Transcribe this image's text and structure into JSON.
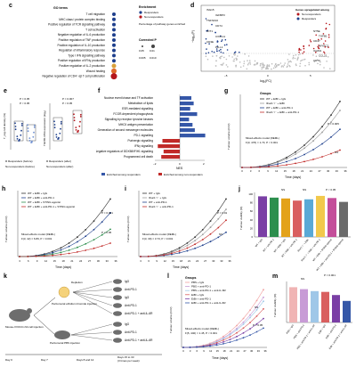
{
  "panels": {
    "c": {
      "letter": "c",
      "header_terms": "GO terms",
      "terms": [
        "T cell migration",
        "MHC class I protein complex binding",
        "Positive regulation of TCR signalling pathway",
        "T cell activation",
        "Negative regulation of IL-6 production",
        "Positive regulation of TNF production",
        "Positive regulation of IL-10 production",
        "Regulation of inflammatory response",
        "Type I IFN signalling pathway",
        "Positive regulation of IFNγ production",
        "Positive regulation of IL-2 production",
        "Wound healing",
        "Negative regulation of CD4⁺ αβ T cell proliferation"
      ],
      "dot_colors": [
        "#1e3f8c",
        "#1e3f8c",
        "#1e3f8c",
        "#1e3f8c",
        "#1e3f8c",
        "#1e3f8c",
        "#1e3f8c",
        "#1e3f8c",
        "#1e3f8c",
        "#1e3f8c",
        "#d9a13a",
        "#e06a2b",
        "#b5161c"
      ],
      "dot_sizes": [
        2,
        2,
        2,
        2,
        2,
        2,
        2,
        2,
        2,
        2,
        2.5,
        3,
        3.5
      ],
      "legend_enrichment": "Enrichment",
      "legend_pct": "Percentage of pathway genes enriched",
      "legend_groups": [
        "Responders",
        "Non-responders"
      ],
      "legend_p": "Corrected P",
      "legend_p_values": [
        "0.05",
        "0.01"
      ],
      "legend_size_values": [
        "0.005",
        "0.010"
      ],
      "legend_group_colors": [
        "#1e3f8c",
        "#b5161c"
      ]
    },
    "d": {
      "letter": "d",
      "ylabel": "−log₁₀(P)",
      "xlabel": "log₂(FC)",
      "xticks": [
        "−5",
        "0",
        "5"
      ],
      "legend_title": "Genes upregulated among",
      "legend_items": [
        "Non-responders",
        "Responders"
      ],
      "legend_colors": [
        "#b5161c",
        "#1e3f8c"
      ],
      "left_genes": [
        "ISG15",
        "IGFBP3",
        "TNFSF10",
        "CD74",
        "IFIT1",
        "CXCL11",
        "CD3E",
        "PD-L1"
      ],
      "right_genes": [
        "NT5E",
        "TGFB1",
        "CD47",
        "NFATC2",
        "ICAM1",
        "CCL21",
        "CD73"
      ]
    },
    "e": {
      "letter": "e",
      "ylabel_left": "T_reg cell density (%)",
      "ylabel_right": "TGFB1 RNA expression (log₂)",
      "p_left_top": "P = 0.05",
      "p_left_bottom": "P < 0.05",
      "p_right_top": "P = 0.007",
      "p_right_bottom": "P < 0.05",
      "legend": [
        "R Responders (before)",
        "R Responders (after)",
        "Non-responders (before)",
        "Non-responders (after)"
      ]
    },
    "f": {
      "letter": "f",
      "xlabel": "NES",
      "xticks": [
        "−2",
        "0",
        "2"
      ],
      "terms": [
        "Nuclear event kinase and TF activation",
        "Metabolism of lipids",
        "ESR-mediated signalling",
        "FCGR-dependent phagocytosis",
        "Signalling by receptor tyrosine kinases",
        "MHCII antigen presentation",
        "Generation of second messenger molecules",
        "PD-1 signalling",
        "Purinergic signalling",
        "IFNγ signalling",
        "Negative regulators of DDX58/IFIH1 signalling",
        "Programmed cell death"
      ],
      "nes": [
        1.0,
        1.2,
        0.9,
        1.5,
        0.8,
        1.1,
        1.3,
        2.2,
        -1.5,
        -1.9,
        -1.4,
        -1.6
      ],
      "bar_colors": [
        "#3557a8",
        "#3557a8",
        "#3557a8",
        "#3557a8",
        "#3557a8",
        "#3557a8",
        "#3557a8",
        "#3557a8",
        "#c12a28",
        "#c12a28",
        "#c12a28",
        "#c12a28"
      ],
      "legend": [
        "Enriched among responders",
        "Enriched among non-responders"
      ]
    },
    "g": {
      "letter": "g",
      "ylabel": "Tumour volume (mm³)",
      "xlabel": "Time (days)",
      "groups_title": "Groups",
      "legend": [
        "WT + EtBr + IgG",
        "Ifnar1⁻/⁻ + EtBr",
        "WT + EtBr + anti-PD-1",
        "Ifnar1⁻/⁻ + EtBr + anti-PD-1"
      ],
      "stats": "Mixed-effects model (REML)\nF(3, 476) = 1.73, P < 0.001",
      "p_labels": [
        "P = 0.005",
        "NS"
      ],
      "xticks": [
        "0",
        "3",
        "6",
        "9",
        "12",
        "15",
        "18",
        "21",
        "24",
        "27",
        "30",
        "33",
        "36"
      ]
    },
    "h": {
      "letter": "h",
      "ylabel": "Tumour volume (mm³)",
      "xlabel": "Time (days)",
      "legend": [
        "WT + EtBr + IgG",
        "WT + EtBr + anti-PD-1",
        "WT + EtBr + STING agonist",
        "WT + EtBr + anti-PD-1 + STING agonist"
      ],
      "stats": "Mixed-effects model (REML)\nF(3, 42) = 6.89, P < 0.001",
      "p_labels": [
        "P = 0.001",
        "P < 0.05"
      ],
      "xticks": [
        "3",
        "6",
        "9",
        "12",
        "15",
        "18",
        "21",
        "24",
        "27",
        "30",
        "33",
        "36"
      ]
    },
    "i": {
      "letter": "i",
      "ylabel": "Tumour volume (mm³)",
      "xlabel": "Time (days)",
      "legend": [
        "WT + IgG",
        "Ifnar1⁻/⁻ + IgG",
        "WT + anti-PD-1",
        "Ifnar1⁻/⁻ + anti-PD-1"
      ],
      "stats": "Mixed-effects model (REML)\nF(3, 39) = 3.73, P < 0.001",
      "p_labels": [
        "P = 0.01",
        "NS"
      ],
      "xticks": [
        "3",
        "6",
        "9",
        "12",
        "15",
        "18",
        "21",
        "24",
        "27",
        "30",
        "33",
        "36"
      ]
    },
    "j": {
      "letter": "j",
      "ylabel": "Tumour viability (%)",
      "bar_colors": [
        "#7a3fa5",
        "#2d8f4e",
        "#e3a21a",
        "#d95f5f",
        "#5aa9d6",
        "#f2c94c",
        "#c44e9a",
        "#6a6a6a"
      ],
      "values": [
        95,
        92,
        90,
        85,
        88,
        96,
        91,
        82
      ],
      "yticks": [
        "0",
        "20",
        "40",
        "60",
        "80",
        "100"
      ],
      "p_labels": [
        "NS",
        "NS",
        "P < 0.05"
      ],
      "categories": [
        "WT + IgG",
        "WT + anti-PD-1",
        "WT + EtBr + IgG",
        "WT + EtBr + anti-PD-1",
        "Ifnar1⁻/⁻ + EtBr",
        "Ifnar1⁻/⁻ + EtBr + anti-PD-1",
        "WT + EtBr + STING agonist",
        "WT + EtBr + anti-PD-1 + STING agonist"
      ]
    },
    "k": {
      "letter": "k",
      "mouse_label": "Mouse-VVOCC-N4 cell injection",
      "depletion": "Depletion",
      "peritumoral_etbr": "Peritumoral ethidium bromide injection",
      "peritumoral_pbs": "Peritumoral PBS injection",
      "treatments_top": [
        "IgG",
        "Anti-PD-1",
        "IgG",
        "Anti-PD-1",
        "Anti-PD-1 + anti-IL-6R"
      ],
      "treatments_bottom": [
        "IgG",
        "Anti-PD-1",
        "Anti-PD-1 + anti-IL-6R"
      ],
      "timeline": [
        "Day 0",
        "Day 7",
        "Days 8 and 12",
        "Days 15 to 33\n(3 times per week)"
      ]
    },
    "l": {
      "letter": "l",
      "ylabel": "Tumour volume (mm³)",
      "xlabel": "Time (days)",
      "groups_title": "Groups",
      "legend": [
        "PBS + IgG",
        "PBS + anti-PD-1",
        "PBS + anti-PD-1 + anti-IL-6R",
        "EtBr + IgG",
        "EtBr + anti-PD-1",
        "EtBr + anti-PD-1 + anti-IL-6R"
      ],
      "stats": "Mixed-effects model (REML)\nF(5, 440) = 1.45, P < 0.001",
      "p_labels": [
        "NS",
        "P < 0.05"
      ],
      "xticks": [
        "0",
        "3",
        "6",
        "9",
        "12",
        "15",
        "18",
        "21",
        "24",
        "27",
        "30",
        "33",
        "36"
      ]
    },
    "m": {
      "letter": "m",
      "ylabel": "Tumour viability (%)",
      "values": [
        90,
        85,
        80,
        78,
        70,
        55
      ],
      "bar_colors": [
        "#f0b4b4",
        "#c89bd6",
        "#9fc7e8",
        "#d95f5f",
        "#7a3fa5",
        "#3557a8"
      ],
      "p_labels": [
        "NS",
        "P = 0.001"
      ],
      "categories": [
        "PBS + IgG",
        "PBS + anti-PD-1",
        "PBS + anti-PD-1 + anti-IL-6R",
        "EtBr + IgG",
        "EtBr + anti-PD-1",
        "EtBr + anti-PD-1 + anti-IL-6R"
      ]
    }
  }
}
